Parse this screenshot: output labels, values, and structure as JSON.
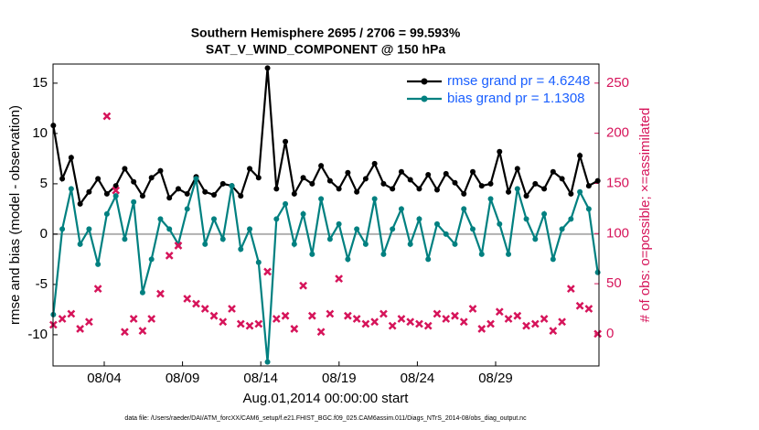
{
  "chart_data": {
    "type": "line",
    "title": "Southern Hemisphere 2695 / 2706 = 99.593%",
    "subtitle": "SAT_V_WIND_COMPONENT @ 150 hPa",
    "x_label": "Aug.01,2014 00:00:00 start",
    "y_label": "rmse and bias (model - observation)",
    "y2_label": "# of obs: o=possible; ×=assimilated",
    "footnote": "data file: /Users/raeder/DAI/ATM_forcXX/CAM6_setup/f.e21.FHIST_BGC.f09_025.CAM6assim.011/Diags_NTrS_2014-08/obs_diag_output.nc",
    "x": [
      0.75,
      1.32,
      1.89,
      2.46,
      3.03,
      3.6,
      4.17,
      4.74,
      5.31,
      5.88,
      6.45,
      7.02,
      7.59,
      8.16,
      8.73,
      9.3,
      9.87,
      10.44,
      11.01,
      11.58,
      12.15,
      12.72,
      13.29,
      13.86,
      14.43,
      15.0,
      15.57,
      16.14,
      16.71,
      17.28,
      17.85,
      18.42,
      18.99,
      19.56,
      20.13,
      20.7,
      21.27,
      21.84,
      22.41,
      22.98,
      23.55,
      24.12,
      24.69,
      25.26,
      25.83,
      26.4,
      26.97,
      27.54,
      28.11,
      28.68,
      29.25,
      29.82,
      30.39,
      30.96,
      31.53,
      32.1,
      32.67,
      33.24,
      33.81,
      34.38,
      34.95,
      35.52
    ],
    "xlim": [
      0.73,
      35.6
    ],
    "xticks": [
      {
        "value": 4,
        "label": "08/04"
      },
      {
        "value": 9,
        "label": "08/09"
      },
      {
        "value": 14,
        "label": "08/14"
      },
      {
        "value": 19,
        "label": "08/19"
      },
      {
        "value": 24,
        "label": "08/24"
      },
      {
        "value": 29,
        "label": "08/29"
      }
    ],
    "ylim": [
      -13.1,
      16.9
    ],
    "yticks": [
      -10,
      -5,
      0,
      5,
      10,
      15
    ],
    "y2lim": [
      -32,
      269
    ],
    "y2ticks": [
      0,
      50,
      100,
      150,
      200,
      250
    ],
    "legend": "upper right",
    "series": [
      {
        "name": "rmse grand pr = 4.6248",
        "color": "#000000",
        "values": [
          10.8,
          5.5,
          7.6,
          3.0,
          4.2,
          5.5,
          4.0,
          4.8,
          6.5,
          5.2,
          3.8,
          5.6,
          6.3,
          3.6,
          4.5,
          4.0,
          5.7,
          4.2,
          3.9,
          5.0,
          4.8,
          3.8,
          6.5,
          5.6,
          16.5,
          4.5,
          9.2,
          4.0,
          5.6,
          5.0,
          6.8,
          5.3,
          4.5,
          6.1,
          4.2,
          5.5,
          7.0,
          5.0,
          4.5,
          6.2,
          5.4,
          4.5,
          5.9,
          4.4,
          6.0,
          5.1,
          4.0,
          6.2,
          4.8,
          5.0,
          8.2,
          4.2,
          6.5,
          3.8,
          5.0,
          4.5,
          6.2,
          5.5,
          4.0,
          7.8,
          4.8,
          5.3
        ]
      },
      {
        "name": "bias grand pr = 1.1308",
        "color": "#008080",
        "values": [
          -8,
          0.5,
          4.5,
          -1,
          0.5,
          -3,
          2,
          3.8,
          -0.5,
          3.2,
          -5.8,
          -2.5,
          1.5,
          0.5,
          -1,
          2.5,
          5.5,
          -1,
          1.5,
          -0.5,
          4.8,
          -1.5,
          0.5,
          -2.8,
          -12.7,
          1.5,
          3.0,
          -1,
          2.0,
          -2,
          3.5,
          -0.5,
          1.0,
          -2.5,
          0.5,
          -1,
          3.5,
          -2,
          0.5,
          2.5,
          -1,
          1.5,
          -2.5,
          1.0,
          0,
          -1,
          2.5,
          0.5,
          -2,
          3.5,
          1,
          -2,
          4.5,
          1.5,
          -0.5,
          2.0,
          -2.5,
          0.5,
          1.5,
          4.2,
          2.5,
          -3.8
        ]
      },
      {
        "axis": "y2",
        "color": "#d6145a",
        "values": [
          9,
          15,
          20,
          5,
          12,
          45,
          217,
          143,
          2,
          15,
          3,
          15,
          40,
          78,
          88,
          35,
          30,
          25,
          18,
          12,
          25,
          10,
          8,
          10,
          62,
          15,
          18,
          5,
          48,
          18,
          2,
          20,
          55,
          18,
          15,
          10,
          12,
          20,
          8,
          15,
          12,
          10,
          8,
          20,
          15,
          18,
          12,
          25,
          5,
          10,
          22,
          15,
          18,
          8,
          10,
          15,
          3,
          12,
          45,
          28,
          25,
          0
        ]
      }
    ],
    "zero_line_color": "#b0b0b0"
  }
}
